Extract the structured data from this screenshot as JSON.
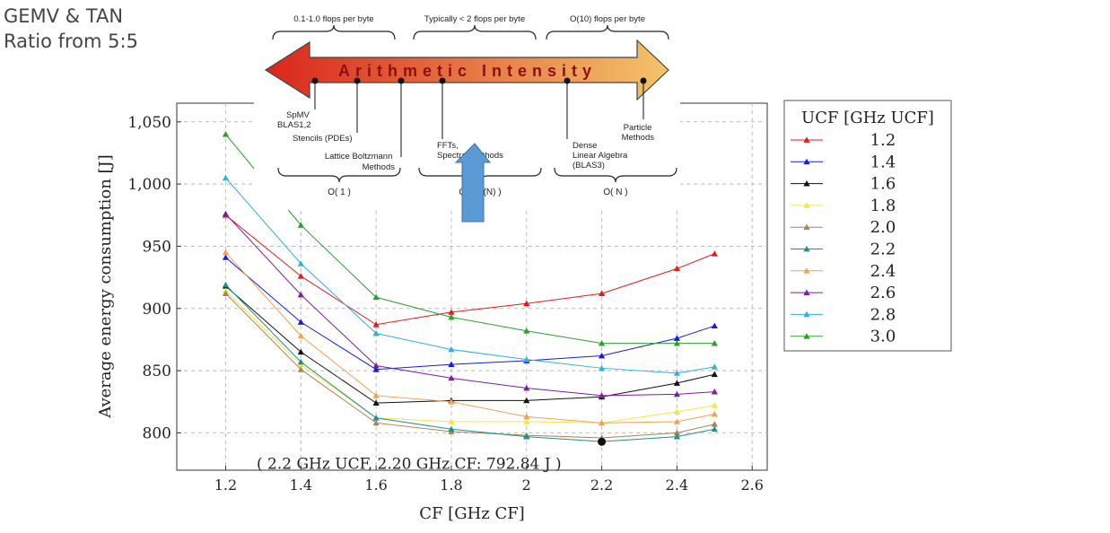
{
  "slide": {
    "title_line1": "GEMV & TAN",
    "title_line2": "Ratio from 5:5"
  },
  "chart_data": {
    "type": "line",
    "xlabel": "CF [GHz CF]",
    "ylabel": "Average energy consumption [J]",
    "x": [
      1.2,
      1.4,
      1.6,
      1.8,
      2.0,
      2.2,
      2.4,
      2.5
    ],
    "x_ticks": [
      "1.2",
      "1.4",
      "1.6",
      "1.8",
      "2",
      "2.2",
      "2.4",
      "2.6"
    ],
    "x_tick_values": [
      1.2,
      1.4,
      1.6,
      1.8,
      2.0,
      2.2,
      2.4,
      2.6
    ],
    "y_ticks": [
      "800",
      "850",
      "900",
      "950",
      "1,000",
      "1,050"
    ],
    "y_tick_values": [
      800,
      850,
      900,
      950,
      1000,
      1050
    ],
    "xlim": [
      1.07,
      2.64
    ],
    "ylim": [
      770,
      1065
    ],
    "grid": true,
    "legend_title": "UCF [GHz UCF]",
    "legend_position": "right-outside",
    "annotation": "( 2.2 GHz UCF, 2.20 GHz CF: 792.84 J )",
    "min_point": {
      "x": 2.2,
      "y": 792.84
    },
    "series": [
      {
        "name": "1.2",
        "color": "#e41a1c",
        "values": [
          975,
          926,
          887,
          897,
          904,
          912,
          932,
          944
        ]
      },
      {
        "name": "1.4",
        "color": "#1a1adf",
        "values": [
          941,
          889,
          851,
          855,
          858,
          862,
          876,
          886
        ]
      },
      {
        "name": "1.6",
        "color": "#111111",
        "values": [
          918,
          865,
          824,
          826,
          826,
          829,
          840,
          847
        ]
      },
      {
        "name": "1.8",
        "color": "#f2e64a",
        "values": [
          914,
          855,
          812,
          809,
          809,
          808,
          817,
          822
        ]
      },
      {
        "name": "2.0",
        "color": "#b08050",
        "values": [
          912,
          851,
          808,
          801,
          798,
          796,
          800,
          807
        ]
      },
      {
        "name": "2.2",
        "color": "#1f8f8f",
        "values": [
          919,
          857,
          812,
          803,
          797,
          793,
          797,
          803
        ]
      },
      {
        "name": "2.4",
        "color": "#f4a050",
        "values": [
          945,
          878,
          830,
          825,
          813,
          808,
          809,
          815
        ]
      },
      {
        "name": "2.6",
        "color": "#7a1fa0",
        "values": [
          976,
          911,
          854,
          844,
          836,
          830,
          831,
          833
        ]
      },
      {
        "name": "2.8",
        "color": "#30b0e0",
        "values": [
          1005,
          936,
          880,
          867,
          859,
          852,
          848,
          853
        ]
      },
      {
        "name": "3.0",
        "color": "#2aa02a",
        "values": [
          1040,
          967,
          909,
          893,
          882,
          872,
          872,
          872
        ]
      }
    ]
  },
  "overlay": {
    "ranges": [
      {
        "label": "0.1-1.0 flops per byte"
      },
      {
        "label": "Typically < 2 flops per byte"
      },
      {
        "label": "O(10) flops per byte"
      }
    ],
    "arrow_text": "Arithmetic Intensity",
    "apps": {
      "spmv": [
        "SpMV",
        "BLAS1,2"
      ],
      "stencils": [
        "Stencils (PDEs)"
      ],
      "lbm": [
        "Lattice Boltzmann",
        "Methods"
      ],
      "fft": [
        "FFTs,",
        "Spectral Methods"
      ],
      "dense": [
        "Dense",
        "Linear Algebra",
        "(BLAS3)"
      ],
      "particle": [
        "Particle",
        "Methods"
      ]
    },
    "complexity": [
      {
        "label": "O( 1 )"
      },
      {
        "label": "O( log(N) )"
      },
      {
        "label": "O( N )"
      }
    ],
    "colors": {
      "arrow_start": "#d9261c",
      "arrow_end": "#f3c46a",
      "pointer": "#5b9bd5"
    }
  }
}
